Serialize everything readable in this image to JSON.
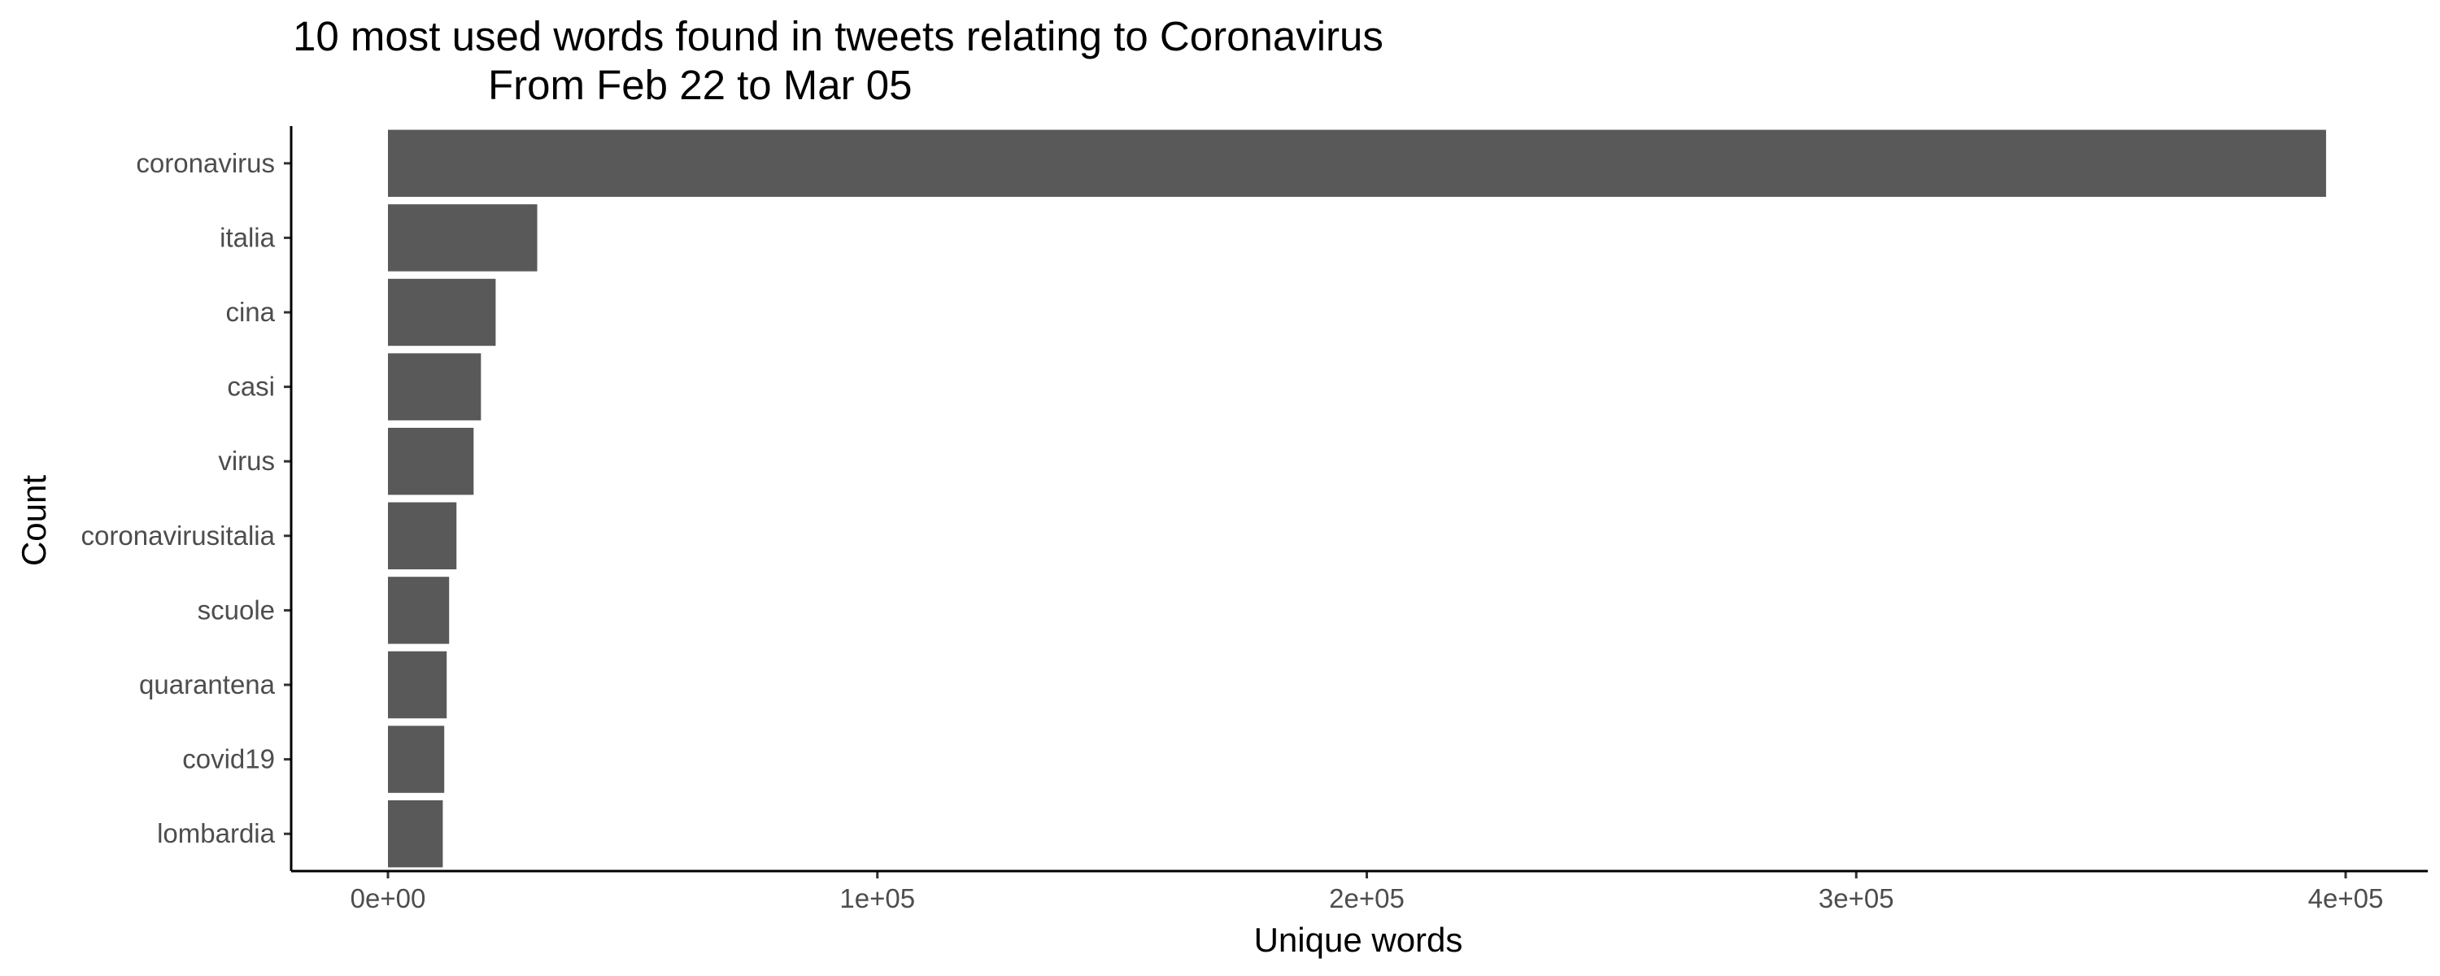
{
  "chart_data": {
    "type": "bar",
    "orientation": "horizontal",
    "title_line1": "10 most used words found in tweets relating to Coronavirus",
    "title_line2": "From Feb 22 to Mar 05",
    "xlabel": "Unique words",
    "ylabel": "Count",
    "categories": [
      "coronavirus",
      "italia",
      "cina",
      "casi",
      "virus",
      "coronavirusitalia",
      "scuole",
      "quarantena",
      "covid19",
      "lombardia"
    ],
    "values": [
      396000,
      30500,
      22000,
      19000,
      17500,
      14000,
      12500,
      12000,
      11500,
      11200
    ],
    "xlim": [
      0,
      400000
    ],
    "xticks": [
      0,
      100000,
      200000,
      300000,
      400000
    ],
    "xtick_labels": [
      "0e+00",
      "1e+05",
      "2e+05",
      "3e+05",
      "4e+05"
    ],
    "bar_color": "#595959",
    "grid": false,
    "legend": "none"
  }
}
